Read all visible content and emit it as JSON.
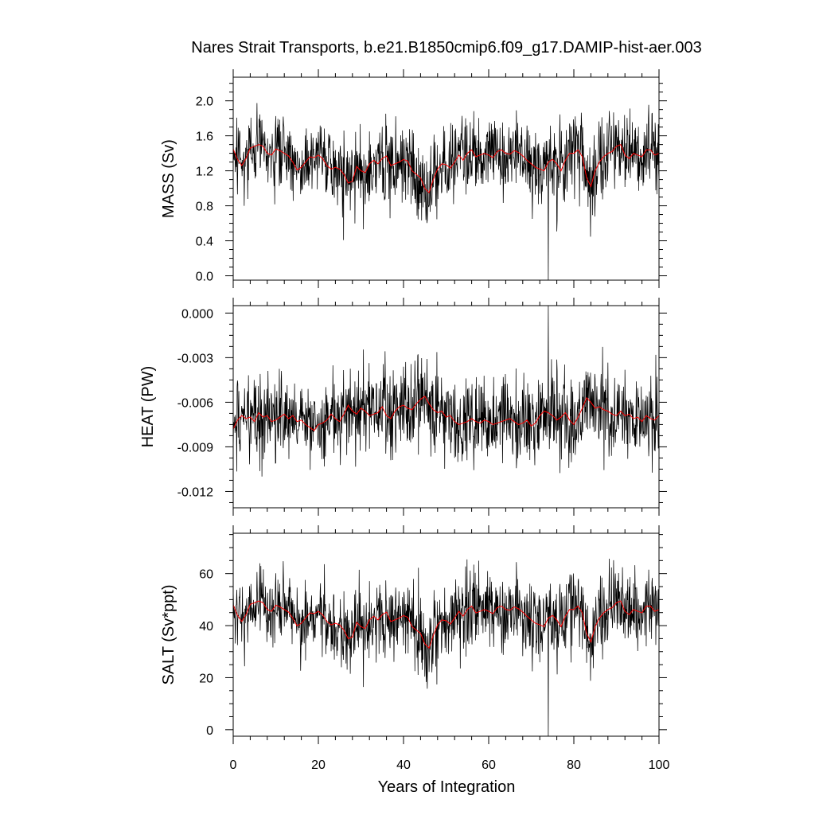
{
  "title": "Nares Strait Transports, b.e21.B1850cmip6.f09_g17.DAMIP-hist-aer.003",
  "xlabel": "Years of Integration",
  "colors": {
    "raw": "#000000",
    "smooth": "#ff0000",
    "axes": "#000000"
  },
  "chart_data": [
    {
      "type": "line",
      "panel": "mass",
      "xlabel": "Years of Integration",
      "ylabel": "MASS (Sv)",
      "xlim": [
        0,
        100
      ],
      "ylim": [
        -0.05,
        2.27
      ],
      "x_ticks": [
        0,
        20,
        40,
        60,
        80,
        100
      ],
      "x_tick_labels": [
        "0",
        "20",
        "40",
        "60",
        "80",
        "100"
      ],
      "y_ticks": [
        0.0,
        0.4,
        0.8,
        1.2,
        1.6,
        2.0
      ],
      "y_tick_labels": [
        "0.0",
        "0.4",
        "0.8",
        "1.2",
        "1.6",
        "2.0"
      ],
      "series": [
        {
          "role": "smoothed",
          "color": "#ff0000",
          "x": [
            0,
            1,
            2,
            3,
            4,
            5,
            6,
            7,
            8,
            9,
            10,
            11,
            12,
            13,
            14,
            15,
            16,
            17,
            18,
            19,
            20,
            21,
            22,
            23,
            24,
            25,
            26,
            27,
            28,
            29,
            30,
            31,
            32,
            33,
            34,
            35,
            36,
            37,
            38,
            39,
            40,
            41,
            42,
            43,
            44,
            45,
            46,
            47,
            48,
            49,
            50,
            51,
            52,
            53,
            54,
            55,
            56,
            57,
            58,
            59,
            60,
            61,
            62,
            63,
            64,
            65,
            66,
            67,
            68,
            69,
            70,
            71,
            72,
            73,
            74,
            75,
            76,
            77,
            78,
            79,
            80,
            81,
            82,
            83,
            84,
            85,
            86,
            87,
            88,
            89,
            90,
            91,
            92,
            93,
            94,
            95,
            96,
            97,
            98,
            99,
            100
          ],
          "values": [
            1.45,
            1.33,
            1.26,
            1.34,
            1.46,
            1.48,
            1.5,
            1.48,
            1.4,
            1.38,
            1.45,
            1.43,
            1.4,
            1.37,
            1.3,
            1.21,
            1.24,
            1.3,
            1.36,
            1.35,
            1.38,
            1.34,
            1.26,
            1.22,
            1.24,
            1.22,
            1.16,
            1.06,
            1.08,
            1.25,
            1.2,
            1.18,
            1.28,
            1.32,
            1.28,
            1.34,
            1.37,
            1.26,
            1.28,
            1.3,
            1.33,
            1.31,
            1.2,
            1.16,
            1.12,
            1.0,
            0.95,
            1.1,
            1.22,
            1.28,
            1.27,
            1.23,
            1.3,
            1.38,
            1.32,
            1.4,
            1.44,
            1.36,
            1.38,
            1.4,
            1.38,
            1.35,
            1.42,
            1.44,
            1.4,
            1.39,
            1.43,
            1.41,
            1.37,
            1.32,
            1.28,
            1.24,
            1.22,
            1.2,
            1.3,
            1.33,
            1.28,
            1.2,
            1.32,
            1.4,
            1.4,
            1.44,
            1.36,
            1.12,
            1.02,
            1.2,
            1.3,
            1.36,
            1.4,
            1.42,
            1.48,
            1.5,
            1.38,
            1.34,
            1.4,
            1.38,
            1.36,
            1.44,
            1.44,
            1.38,
            1.4
          ]
        }
      ]
    },
    {
      "type": "line",
      "panel": "heat",
      "xlabel": "Years of Integration",
      "ylabel": "HEAT (PW)",
      "xlim": [
        0,
        100
      ],
      "ylim": [
        -0.0131,
        0.0005
      ],
      "x_ticks": [
        0,
        20,
        40,
        60,
        80,
        100
      ],
      "x_tick_labels": [
        "0",
        "20",
        "40",
        "60",
        "80",
        "100"
      ],
      "y_ticks": [
        0.0,
        -0.003,
        -0.006,
        -0.009,
        -0.012
      ],
      "y_tick_labels": [
        "0.000",
        "-0.003",
        "-0.006",
        "-0.009",
        "-0.012"
      ],
      "series": [
        {
          "role": "smoothed",
          "color": "#ff0000",
          "x": [
            0,
            1,
            2,
            3,
            4,
            5,
            6,
            7,
            8,
            9,
            10,
            11,
            12,
            13,
            14,
            15,
            16,
            17,
            18,
            19,
            20,
            21,
            22,
            23,
            24,
            25,
            26,
            27,
            28,
            29,
            30,
            31,
            32,
            33,
            34,
            35,
            36,
            37,
            38,
            39,
            40,
            41,
            42,
            43,
            44,
            45,
            46,
            47,
            48,
            49,
            50,
            51,
            52,
            53,
            54,
            55,
            56,
            57,
            58,
            59,
            60,
            61,
            62,
            63,
            64,
            65,
            66,
            67,
            68,
            69,
            70,
            71,
            72,
            73,
            74,
            75,
            76,
            77,
            78,
            79,
            80,
            81,
            82,
            83,
            84,
            85,
            86,
            87,
            88,
            89,
            90,
            91,
            92,
            93,
            94,
            95,
            96,
            97,
            98,
            99,
            100
          ],
          "values": [
            -0.0078,
            -0.0072,
            -0.0069,
            -0.0071,
            -0.007,
            -0.0073,
            -0.0067,
            -0.007,
            -0.0069,
            -0.0073,
            -0.0072,
            -0.007,
            -0.0068,
            -0.0071,
            -0.0069,
            -0.0073,
            -0.0072,
            -0.0075,
            -0.0077,
            -0.0079,
            -0.0075,
            -0.0074,
            -0.0072,
            -0.0068,
            -0.0071,
            -0.0073,
            -0.0068,
            -0.0062,
            -0.0066,
            -0.0068,
            -0.0064,
            -0.0066,
            -0.0069,
            -0.0068,
            -0.0067,
            -0.0063,
            -0.0069,
            -0.0071,
            -0.0066,
            -0.0063,
            -0.0062,
            -0.0064,
            -0.0065,
            -0.0061,
            -0.0058,
            -0.0056,
            -0.0061,
            -0.0065,
            -0.0067,
            -0.0066,
            -0.007,
            -0.0069,
            -0.0073,
            -0.0075,
            -0.0074,
            -0.0073,
            -0.0071,
            -0.0073,
            -0.0074,
            -0.0072,
            -0.0073,
            -0.0075,
            -0.0074,
            -0.0073,
            -0.0072,
            -0.0071,
            -0.0073,
            -0.0075,
            -0.0074,
            -0.0072,
            -0.0076,
            -0.0074,
            -0.0069,
            -0.0066,
            -0.0067,
            -0.0069,
            -0.0072,
            -0.007,
            -0.0067,
            -0.0072,
            -0.0075,
            -0.007,
            -0.0064,
            -0.0057,
            -0.006,
            -0.0064,
            -0.0063,
            -0.0065,
            -0.0066,
            -0.0068,
            -0.0069,
            -0.0066,
            -0.0069,
            -0.0068,
            -0.0071,
            -0.007,
            -0.0073,
            -0.0069,
            -0.0071,
            -0.0072,
            -0.0069
          ]
        }
      ]
    },
    {
      "type": "line",
      "panel": "salt",
      "xlabel": "Years of Integration",
      "ylabel": "SALT (Sv*ppt)",
      "xlim": [
        0,
        100
      ],
      "ylim": [
        -2.5,
        75.5
      ],
      "x_ticks": [
        0,
        20,
        40,
        60,
        80,
        100
      ],
      "x_tick_labels": [
        "0",
        "20",
        "40",
        "60",
        "80",
        "100"
      ],
      "y_ticks": [
        0,
        20,
        40,
        60
      ],
      "y_tick_labels": [
        "0",
        "20",
        "40",
        "60"
      ],
      "series": [
        {
          "role": "smoothed",
          "color": "#ff0000",
          "x": [
            0,
            1,
            2,
            3,
            4,
            5,
            6,
            7,
            8,
            9,
            10,
            11,
            12,
            13,
            14,
            15,
            16,
            17,
            18,
            19,
            20,
            21,
            22,
            23,
            24,
            25,
            26,
            27,
            28,
            29,
            30,
            31,
            32,
            33,
            34,
            35,
            36,
            37,
            38,
            39,
            40,
            41,
            42,
            43,
            44,
            45,
            46,
            47,
            48,
            49,
            50,
            51,
            52,
            53,
            54,
            55,
            56,
            57,
            58,
            59,
            60,
            61,
            62,
            63,
            64,
            65,
            66,
            67,
            68,
            69,
            70,
            71,
            72,
            73,
            74,
            75,
            76,
            77,
            78,
            79,
            80,
            81,
            82,
            83,
            84,
            85,
            86,
            87,
            88,
            89,
            90,
            91,
            92,
            93,
            94,
            95,
            96,
            97,
            98,
            99,
            100
          ],
          "values": [
            47.9,
            44.0,
            41.6,
            44.2,
            48.2,
            48.8,
            49.5,
            48.8,
            46.2,
            45.5,
            47.9,
            47.2,
            46.2,
            45.2,
            42.9,
            39.9,
            40.9,
            42.9,
            44.9,
            44.6,
            45.5,
            44.2,
            41.6,
            40.3,
            40.9,
            40.3,
            38.3,
            35.0,
            35.6,
            41.3,
            39.6,
            38.9,
            42.2,
            43.6,
            42.2,
            44.2,
            45.2,
            41.6,
            42.2,
            42.9,
            43.9,
            43.2,
            39.6,
            38.3,
            37.0,
            33.0,
            31.4,
            36.3,
            40.3,
            42.2,
            41.9,
            40.6,
            42.9,
            45.5,
            43.6,
            46.2,
            47.5,
            44.9,
            45.5,
            46.2,
            45.5,
            44.6,
            46.9,
            47.5,
            46.2,
            45.9,
            47.2,
            46.5,
            45.2,
            43.6,
            42.2,
            40.9,
            40.3,
            39.6,
            42.9,
            43.9,
            42.2,
            39.6,
            43.6,
            46.2,
            46.2,
            47.5,
            44.9,
            37.0,
            33.7,
            39.6,
            42.9,
            44.9,
            46.2,
            46.9,
            48.8,
            49.5,
            45.5,
            44.2,
            46.2,
            45.5,
            44.9,
            47.5,
            47.5,
            45.5,
            46.2
          ]
        }
      ]
    }
  ]
}
